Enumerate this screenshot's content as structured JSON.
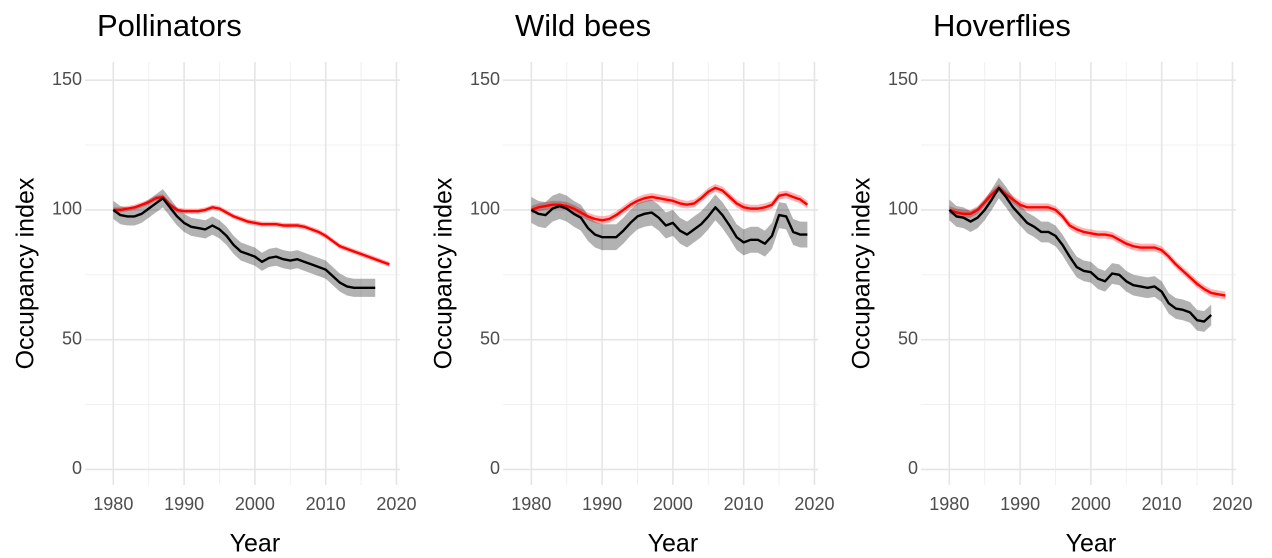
{
  "chart_data": [
    {
      "type": "line",
      "title": "Pollinators",
      "xlabel": "Year",
      "ylabel": "Occupancy index",
      "x": [
        1980,
        1981,
        1982,
        1983,
        1984,
        1985,
        1986,
        1987,
        1988,
        1989,
        1990,
        1991,
        1992,
        1993,
        1994,
        1995,
        1996,
        1997,
        1998,
        1999,
        2000,
        2001,
        2002,
        2003,
        2004,
        2005,
        2006,
        2007,
        2008,
        2009,
        2010,
        2011,
        2012,
        2013,
        2014,
        2015,
        2016,
        2017,
        2018,
        2019
      ],
      "xlim": [
        1976,
        2020.5
      ],
      "ylim": [
        -6,
        157
      ],
      "xticks": [
        1980,
        1990,
        2000,
        2010,
        2020
      ],
      "yticks": [
        0,
        50,
        100,
        150
      ],
      "xminor": [
        1985,
        1995,
        2005,
        2015
      ],
      "yminor": [
        25,
        75,
        125
      ],
      "grid": true,
      "series": [
        {
          "color": "#ff0000",
          "fill": "rgba(255,0,0,0.3)",
          "values": [
            100,
            100,
            100.5,
            101,
            102,
            103,
            104.5,
            105,
            102,
            100,
            99.5,
            99.5,
            99.5,
            100,
            101,
            100.5,
            99,
            97.5,
            96.5,
            95.5,
            95,
            94.5,
            94.5,
            94.5,
            94,
            94,
            94,
            93.5,
            92.5,
            91.5,
            90,
            88,
            86,
            85,
            84,
            83,
            82,
            81,
            80,
            79
          ],
          "lower": [
            99,
            99,
            99.5,
            100,
            101,
            102,
            103.5,
            104,
            101,
            99,
            98.5,
            98.5,
            98.5,
            99,
            100,
            99.5,
            98,
            96.5,
            95.5,
            94.5,
            94,
            93.5,
            93.5,
            93.5,
            93,
            93,
            93,
            92.5,
            91.5,
            90.5,
            89,
            87,
            85,
            84,
            83,
            82,
            81,
            80,
            79,
            78
          ],
          "upper": [
            101,
            101,
            101.5,
            102,
            103,
            104,
            105.5,
            106,
            103,
            101,
            100.5,
            100.5,
            100.5,
            101,
            102,
            101.5,
            100,
            98.5,
            97.5,
            96.5,
            96,
            95.5,
            95.5,
            95.5,
            95,
            95,
            95,
            94.5,
            93.5,
            92.5,
            91,
            89,
            87,
            86,
            85,
            84,
            83,
            82,
            81,
            80
          ]
        },
        {
          "color": "#000000",
          "fill": "rgba(0,0,0,0.3)",
          "values": [
            100,
            98,
            97.5,
            97.5,
            98.5,
            100.5,
            102.5,
            104.5,
            101,
            97.5,
            95,
            93.5,
            93,
            92.5,
            94,
            92.5,
            90,
            86.5,
            84,
            83,
            82,
            80,
            81.5,
            82,
            81,
            80.5,
            81,
            80,
            79,
            78,
            77,
            74.5,
            72,
            70.5,
            70,
            70,
            70,
            70,
            null,
            null
          ],
          "lower": [
            96.5,
            94.5,
            94,
            94,
            95,
            97,
            99,
            101,
            97.5,
            94,
            91.5,
            90,
            89.5,
            89,
            90.5,
            89,
            86.5,
            83,
            80.5,
            79.5,
            78.5,
            76.5,
            78,
            78.5,
            77.5,
            77,
            77.5,
            76.5,
            75.5,
            74.5,
            73.5,
            71,
            68.5,
            67,
            66.5,
            66.5,
            66.5,
            66.5,
            null,
            null
          ],
          "upper": [
            103.5,
            101.5,
            101,
            101,
            102,
            104,
            106,
            108,
            104.5,
            101,
            98.5,
            97,
            96.5,
            96,
            97.5,
            96,
            93.5,
            90,
            87.5,
            86.5,
            85.5,
            83.5,
            85,
            85.5,
            84.5,
            84,
            84.5,
            83.5,
            82.5,
            81.5,
            80.5,
            78,
            75.5,
            74,
            73.5,
            73.5,
            73.5,
            73.5,
            null,
            null
          ]
        }
      ]
    },
    {
      "type": "line",
      "title": "Wild bees",
      "xlabel": "Year",
      "ylabel": "Occupancy index",
      "x": [
        1980,
        1981,
        1982,
        1983,
        1984,
        1985,
        1986,
        1987,
        1988,
        1989,
        1990,
        1991,
        1992,
        1993,
        1994,
        1995,
        1996,
        1997,
        1998,
        1999,
        2000,
        2001,
        2002,
        2003,
        2004,
        2005,
        2006,
        2007,
        2008,
        2009,
        2010,
        2011,
        2012,
        2013,
        2014,
        2015,
        2016,
        2017,
        2018,
        2019
      ],
      "xlim": [
        1976,
        2020.5
      ],
      "ylim": [
        -6,
        157
      ],
      "xticks": [
        1980,
        1990,
        2000,
        2010,
        2020
      ],
      "yticks": [
        0,
        50,
        100,
        150
      ],
      "xminor": [
        1985,
        1995,
        2005,
        2015
      ],
      "yminor": [
        25,
        75,
        125
      ],
      "grid": true,
      "series": [
        {
          "color": "#ff0000",
          "fill": "rgba(255,0,0,0.3)",
          "values": [
            100,
            101,
            101.5,
            102,
            102,
            101.5,
            100.5,
            99,
            97.5,
            96.5,
            96,
            96.5,
            98,
            100,
            102,
            103.5,
            104.5,
            105,
            104.5,
            104,
            103.5,
            102.5,
            102,
            102.5,
            104.5,
            107,
            108.5,
            107.5,
            105,
            102.5,
            101,
            100.5,
            100.5,
            101,
            102,
            105.5,
            106,
            105,
            104,
            102
          ],
          "lower": [
            98.5,
            99.5,
            100,
            100.5,
            100.5,
            100,
            99,
            97.5,
            96,
            95,
            94.5,
            95,
            96.5,
            98.5,
            100.5,
            102,
            103,
            103.5,
            103,
            102.5,
            102,
            101,
            100.5,
            101,
            103,
            105.5,
            107,
            106,
            103.5,
            101,
            99.5,
            99,
            99,
            99.5,
            100.5,
            104,
            104.5,
            103.5,
            102.5,
            100.5
          ],
          "upper": [
            101.5,
            102.5,
            103,
            103.5,
            103.5,
            103,
            102,
            100.5,
            99,
            98,
            97.5,
            98,
            99.5,
            101.5,
            103.5,
            105,
            106,
            106.5,
            106,
            105.5,
            105,
            104,
            103.5,
            104,
            106,
            108.5,
            110,
            109,
            106.5,
            104,
            102.5,
            102,
            102,
            102.5,
            103.5,
            107,
            107.5,
            106.5,
            105.5,
            103.5
          ]
        },
        {
          "color": "#000000",
          "fill": "rgba(0,0,0,0.3)",
          "values": [
            100,
            98.5,
            98,
            100.5,
            101.5,
            100.5,
            98.5,
            97,
            93,
            90.5,
            89.5,
            89.5,
            89.5,
            92,
            95,
            97.5,
            98.5,
            99,
            97,
            94,
            95,
            92,
            90.5,
            92.5,
            94.5,
            97.5,
            101,
            98,
            94,
            89.5,
            87.5,
            88.5,
            88.5,
            87,
            90,
            98,
            97.5,
            91.5,
            90.5,
            90.5
          ],
          "lower": [
            95,
            93.5,
            93,
            95.5,
            96.5,
            95.5,
            93.5,
            92,
            88,
            85.5,
            84.5,
            84.5,
            84.5,
            87,
            90,
            92.5,
            93.5,
            94,
            92,
            89,
            90,
            87,
            85.5,
            87.5,
            89.5,
            92.5,
            96,
            93,
            89,
            84.5,
            82.5,
            83.5,
            83.5,
            82,
            85,
            93,
            92.5,
            86.5,
            85.5,
            85.5
          ],
          "upper": [
            105,
            103.5,
            103,
            105.5,
            106.5,
            105.5,
            103.5,
            102,
            98,
            95.5,
            94.5,
            94.5,
            94.5,
            97,
            100,
            102.5,
            103.5,
            104,
            102,
            99,
            100,
            97,
            95.5,
            97.5,
            99.5,
            102.5,
            106,
            103,
            99,
            94.5,
            92.5,
            93.5,
            93.5,
            92,
            95,
            103,
            102.5,
            96.5,
            95.5,
            95.5
          ]
        }
      ]
    },
    {
      "type": "line",
      "title": "Hoverflies",
      "xlabel": "Year",
      "ylabel": "Occupancy index",
      "x": [
        1980,
        1981,
        1982,
        1983,
        1984,
        1985,
        1986,
        1987,
        1988,
        1989,
        1990,
        1991,
        1992,
        1993,
        1994,
        1995,
        1996,
        1997,
        1998,
        1999,
        2000,
        2001,
        2002,
        2003,
        2004,
        2005,
        2006,
        2007,
        2008,
        2009,
        2010,
        2011,
        2012,
        2013,
        2014,
        2015,
        2016,
        2017,
        2018,
        2019
      ],
      "xlim": [
        1976,
        2020.5
      ],
      "ylim": [
        -6,
        157
      ],
      "xticks": [
        1980,
        1990,
        2000,
        2010,
        2020
      ],
      "yticks": [
        0,
        50,
        100,
        150
      ],
      "xminor": [
        1985,
        1995,
        2005,
        2015
      ],
      "yminor": [
        25,
        75,
        125
      ],
      "grid": true,
      "series": [
        {
          "color": "#ff0000",
          "fill": "rgba(255,0,0,0.3)",
          "values": [
            100,
            99,
            98.5,
            98.5,
            100,
            103,
            106,
            108.5,
            106,
            104,
            102,
            101,
            101,
            101,
            101,
            100,
            97.5,
            94,
            92.5,
            91.5,
            91,
            90.5,
            90.5,
            90,
            88.5,
            87,
            86,
            85.5,
            85.5,
            85.5,
            84.5,
            82,
            79,
            76.5,
            74,
            71.5,
            69.5,
            68,
            67.5,
            67
          ],
          "lower": [
            98.5,
            97.5,
            97,
            97,
            98.5,
            101.5,
            104.5,
            107,
            104.5,
            102.5,
            100.5,
            99.5,
            99.5,
            99.5,
            99.5,
            98.5,
            96,
            92.5,
            91,
            90,
            89.5,
            89,
            89,
            88.5,
            87,
            85.5,
            84.5,
            84,
            84,
            84,
            83,
            80.5,
            77.5,
            75,
            72.5,
            70,
            68,
            66.5,
            66,
            65.5
          ],
          "upper": [
            101.5,
            100.5,
            100,
            100,
            101.5,
            104.5,
            107.5,
            110,
            107.5,
            105.5,
            103.5,
            102.5,
            102.5,
            102.5,
            102.5,
            101.5,
            99,
            95.5,
            94,
            93,
            92.5,
            92,
            92,
            91.5,
            90,
            88.5,
            87.5,
            87,
            87,
            87,
            86,
            83.5,
            80.5,
            78,
            75.5,
            73,
            71,
            69.5,
            69,
            68.5
          ]
        },
        {
          "color": "#000000",
          "fill": "rgba(0,0,0,0.3)",
          "values": [
            100,
            97.5,
            97,
            95.5,
            97,
            100,
            104,
            108.5,
            105,
            101,
            98,
            95,
            93.5,
            91.5,
            91.5,
            90,
            86.5,
            82,
            78,
            76.5,
            76,
            73.5,
            72.5,
            75.5,
            75,
            72.5,
            71,
            70.5,
            70,
            70.5,
            68.5,
            64,
            62,
            61.5,
            60.5,
            57.5,
            57,
            59.5,
            null,
            null
          ],
          "lower": [
            96,
            93.5,
            93,
            91.5,
            93,
            96,
            100,
            104.5,
            101,
            97,
            94,
            91,
            89.5,
            87.5,
            87.5,
            86,
            82.5,
            78,
            74,
            72.5,
            72,
            69.5,
            68.5,
            71.5,
            71,
            68.5,
            67,
            66.5,
            66,
            66.5,
            64.5,
            60,
            58,
            57.5,
            56.5,
            53.5,
            53,
            55.5,
            null,
            null
          ],
          "upper": [
            104,
            101.5,
            101,
            99.5,
            101,
            104,
            108,
            112.5,
            109,
            105,
            102,
            99,
            97.5,
            95.5,
            95.5,
            94,
            90.5,
            86,
            82,
            80.5,
            80,
            77.5,
            76.5,
            79.5,
            79,
            76.5,
            75,
            74.5,
            74,
            74.5,
            72.5,
            68,
            66,
            65.5,
            64.5,
            61.5,
            61,
            63.5,
            null,
            null
          ]
        }
      ]
    }
  ]
}
